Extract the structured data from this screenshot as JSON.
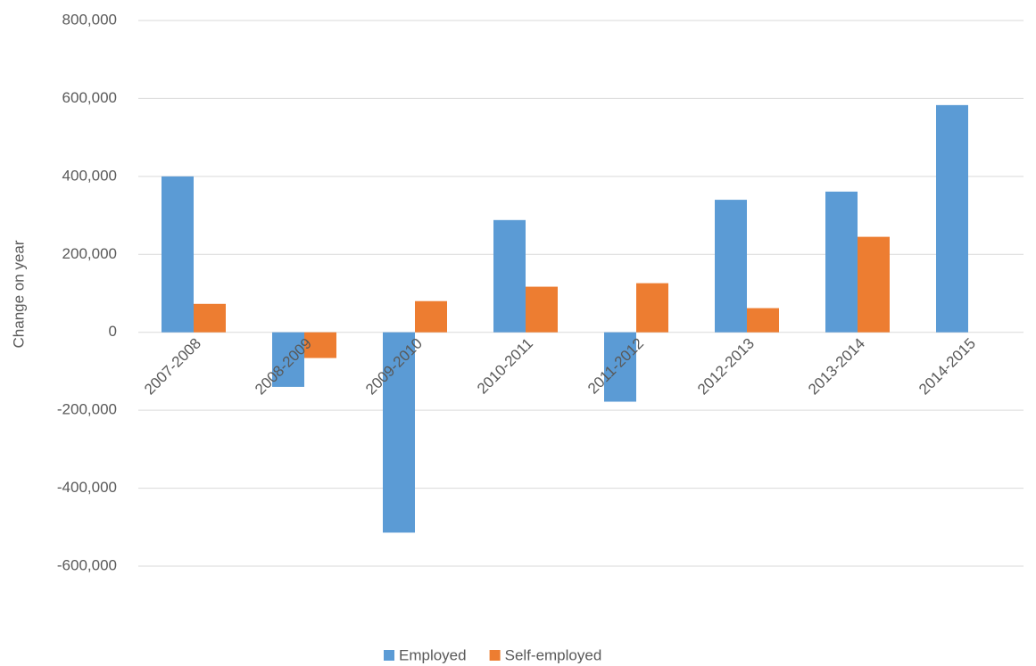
{
  "chart_data": {
    "type": "bar",
    "y_axis_label": "Change on year",
    "categories": [
      "2007-2008",
      "2008-2009",
      "2009-2010",
      "2010-2011",
      "2011-2012",
      "2012-2013",
      "2013-2014",
      "2014-2015"
    ],
    "series": [
      {
        "name": "Employed",
        "color": "#5b9bd5",
        "values": [
          400000,
          -140000,
          -514000,
          288000,
          -178000,
          340000,
          361000,
          583000
        ]
      },
      {
        "name": "Self-employed",
        "color": "#ed7d31",
        "values": [
          73000,
          -66000,
          80000,
          117000,
          126000,
          62000,
          245000,
          null
        ]
      }
    ],
    "ylim": [
      -600000,
      800000
    ],
    "yticks": [
      {
        "value": -600000,
        "label": "-600,000"
      },
      {
        "value": -400000,
        "label": "-400,000"
      },
      {
        "value": -200000,
        "label": "-200,000"
      },
      0,
      {
        "value": 200000,
        "label": "200,000"
      },
      {
        "value": 400000,
        "label": "400,000"
      },
      {
        "value": 600000,
        "label": "600,000"
      },
      {
        "value": 800000,
        "label": "800,000"
      }
    ],
    "grid": true,
    "legend": "bottom"
  }
}
